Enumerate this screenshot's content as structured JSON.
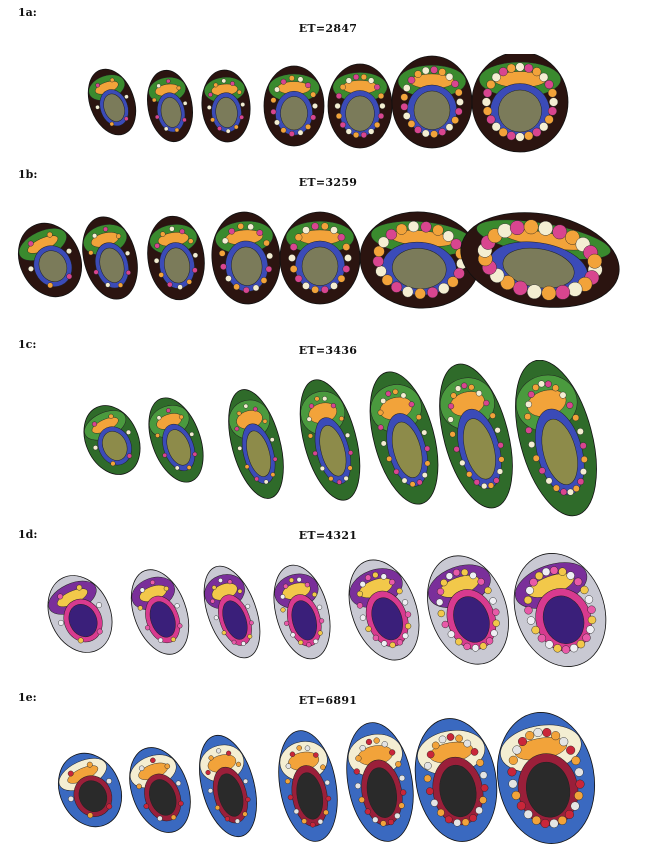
{
  "panels": [
    {
      "label": "1a:",
      "title": "ET=2847",
      "palette": {
        "outer": "#2b1410",
        "band": "#3a8a2e",
        "accent": "#f2a33a",
        "core": "#7b7b5a",
        "ring": "#3b4bb8",
        "light": "#f4eed2",
        "pink": "#d8458f"
      }
    },
    {
      "label": "1b:",
      "title": "ET=3259",
      "palette": {
        "outer": "#2b1410",
        "band": "#3a8a2e",
        "accent": "#f2a33a",
        "core": "#7b7b5a",
        "ring": "#3b4bb8",
        "light": "#f4eed2",
        "pink": "#d8458f"
      }
    },
    {
      "label": "1c:",
      "title": "ET=3436",
      "palette": {
        "outer": "#2f6b2a",
        "band": "#4a9a3e",
        "accent": "#f2a33a",
        "core": "#8d8b4a",
        "ring": "#3b4bb8",
        "light": "#f4eed2",
        "pink": "#d8458f"
      }
    },
    {
      "label": "1d:",
      "title": "ET=4321",
      "palette": {
        "outer": "#c9c9d3",
        "band": "#7a2f9a",
        "accent": "#f2c84a",
        "core": "#3a1f7a",
        "ring": "#d83a8f",
        "light": "#efeff4",
        "pink": "#e85aa8"
      }
    },
    {
      "label": "1e:",
      "title": "ET=6891",
      "palette": {
        "outer": "#3a69c0",
        "band": "#f4eed2",
        "accent": "#f2a33a",
        "core": "#2a2a2a",
        "ring": "#9a1f3a",
        "light": "#e4e4e4",
        "pink": "#c9263a"
      }
    }
  ]
}
